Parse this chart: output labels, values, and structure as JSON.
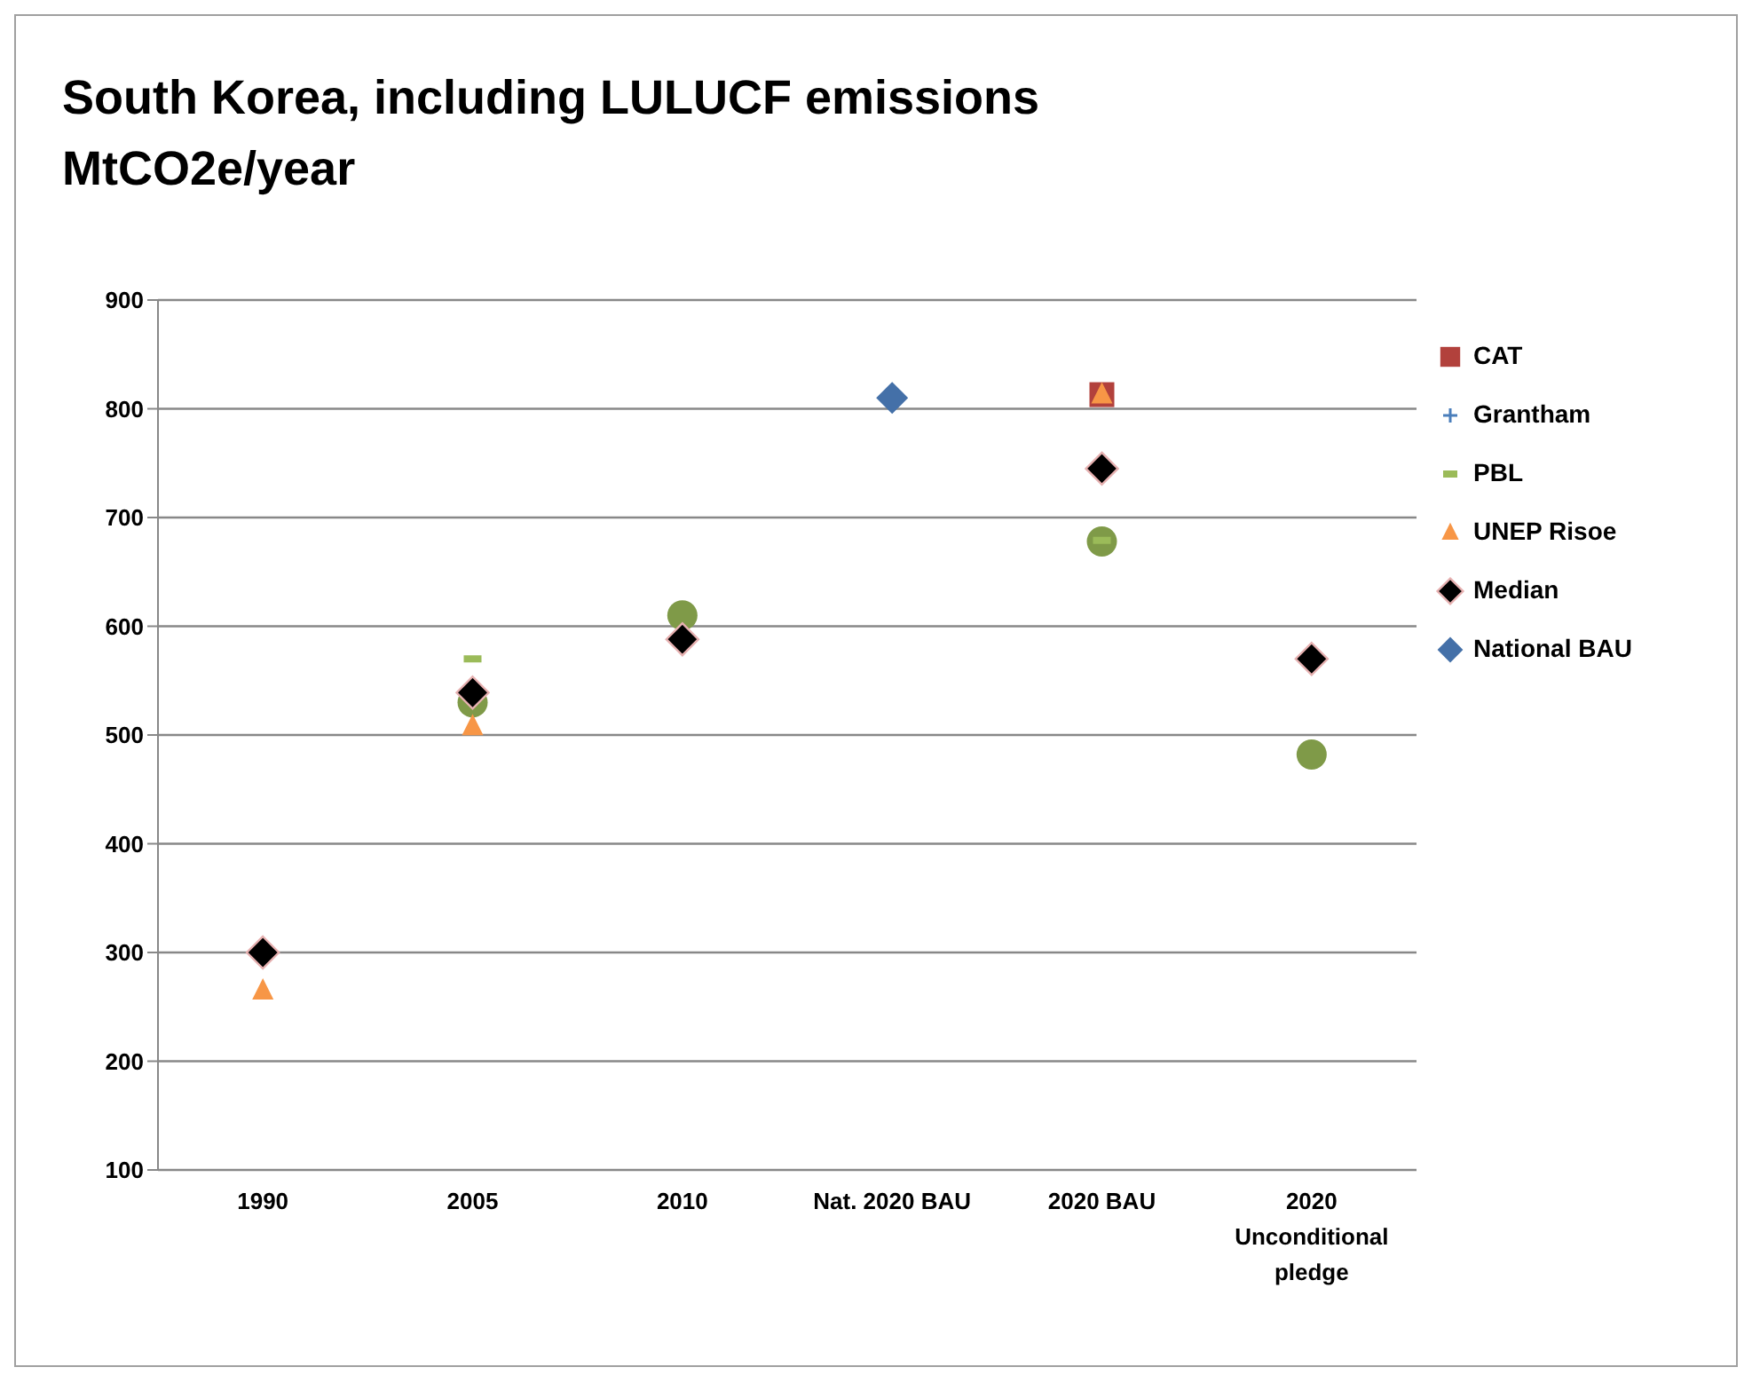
{
  "chart_data": {
    "type": "scatter",
    "title": "South Korea, including LULUCF emissions",
    "subtitle": "MtCO2e/year",
    "categories": [
      "1990",
      "2005",
      "2010",
      "Nat. 2020 BAU",
      "2020 BAU",
      "2020 Unconditional pledge"
    ],
    "ylim": [
      100,
      900
    ],
    "yticks": [
      100,
      200,
      300,
      400,
      500,
      600,
      700,
      800,
      900
    ],
    "grid": "y",
    "legend": "right",
    "series": [
      {
        "name": "CAT",
        "color": "#b2413c",
        "marker": "square",
        "values": [
          null,
          null,
          null,
          null,
          813,
          null
        ]
      },
      {
        "color": "#7f9a48",
        "marker": "circle",
        "values": [
          null,
          530,
          610,
          null,
          678,
          482
        ]
      },
      {
        "name": "Grantham",
        "color": "#4a7ebb",
        "marker": "cross",
        "values": [
          null,
          null,
          null,
          null,
          null,
          null
        ]
      },
      {
        "name": "PBL",
        "color": "#9bbb59",
        "values": [
          null,
          570,
          null,
          null,
          679,
          null
        ]
      },
      {
        "name": "UNEP Risoe",
        "color": "#f79646",
        "marker": "triangle",
        "values": [
          265,
          508,
          null,
          null,
          813,
          null
        ]
      },
      {
        "name": "Median",
        "color": "#000000",
        "marker": "diamond",
        "values": [
          300,
          539,
          588,
          null,
          745,
          570
        ]
      },
      {
        "name": "National BAU",
        "color": "#4470a8",
        "marker": "diamond",
        "values": [
          null,
          null,
          null,
          810,
          null,
          null
        ]
      }
    ]
  }
}
